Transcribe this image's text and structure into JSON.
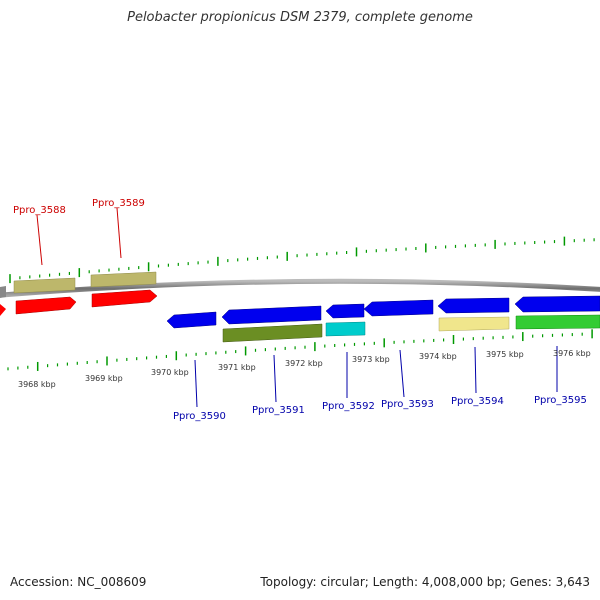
{
  "title": "Pelobacter propionicus DSM 2379, complete genome",
  "footer": {
    "accession": "Accession: NC_008609",
    "topology": "Topology: circular; Length: 4,008,000 bp; Genes: 3,643"
  },
  "kbp_ticks": [
    "3968 kbp",
    "3969 kbp",
    "3970 kbp",
    "3971 kbp",
    "3972 kbp",
    "3973 kbp",
    "3974 kbp",
    "3975 kbp",
    "3976 kbp"
  ],
  "gene_labels_top": [
    "Ppro_3588",
    "Ppro_3589"
  ],
  "gene_labels_bottom": [
    "Ppro_3590",
    "Ppro_3591",
    "Ppro_3592",
    "Ppro_3593",
    "Ppro_3594",
    "Ppro_3595"
  ],
  "colors": {
    "forward_red": "#ff0000",
    "reverse_blue": "#0000ee",
    "khaki": "#bdb76b",
    "olive": "#6b8e23",
    "cyan": "#00cccc",
    "pale_yellow": "#f0e68c",
    "green": "#33cc33",
    "tick_green": "#009900",
    "track": "#888888"
  }
}
